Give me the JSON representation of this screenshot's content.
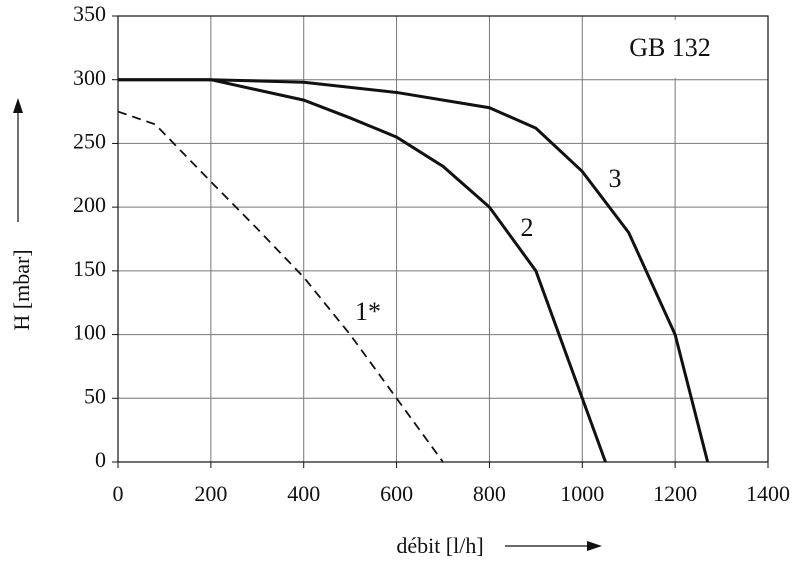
{
  "chart_data": {
    "type": "line",
    "title": "GB 132",
    "x_label": "débit [l/h]",
    "y_label": "H [mbar]",
    "xlim": [
      0,
      1400
    ],
    "xticks": [
      0,
      200,
      400,
      600,
      800,
      1000,
      1200,
      1400
    ],
    "ylim": [
      0,
      350
    ],
    "yticks": [
      0,
      50,
      100,
      150,
      200,
      250,
      300,
      350
    ],
    "grid": true,
    "series": [
      {
        "name": "1*",
        "color": "#111111",
        "dashed": true,
        "x": [
          0,
          80,
          200,
          300,
          400,
          500,
          600,
          700
        ],
        "values": [
          275,
          265,
          220,
          183,
          145,
          100,
          50,
          0
        ]
      },
      {
        "name": "2",
        "color": "#111111",
        "dashed": false,
        "x": [
          0,
          200,
          400,
          500,
          600,
          700,
          800,
          900,
          1000,
          1050
        ],
        "values": [
          300,
          300,
          284,
          270,
          255,
          232,
          200,
          150,
          50,
          0
        ]
      },
      {
        "name": "3",
        "color": "#111111",
        "dashed": false,
        "x": [
          0,
          200,
          400,
          600,
          800,
          900,
          1000,
          1100,
          1200,
          1270
        ],
        "values": [
          300,
          300,
          298,
          290,
          278,
          262,
          228,
          180,
          100,
          0
        ]
      }
    ]
  }
}
